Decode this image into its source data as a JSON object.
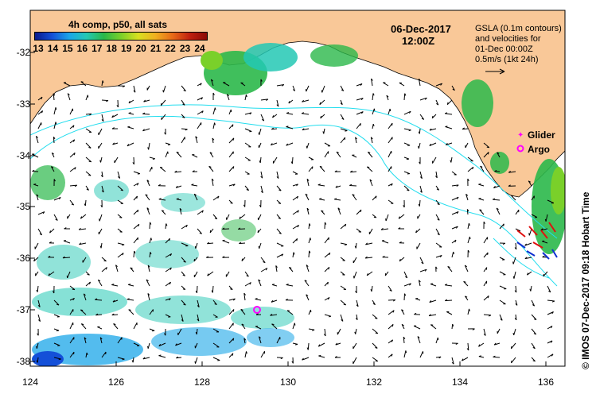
{
  "colorbar": {
    "title": "4h comp, p50, all sats",
    "ticks": [
      "13",
      "14",
      "15",
      "16",
      "17",
      "18",
      "19",
      "20",
      "21",
      "22",
      "23",
      "24"
    ],
    "colors": [
      "#0a1a8c",
      "#1450d8",
      "#1aa6e8",
      "#23c8b4",
      "#2bb84a",
      "#7ad02a",
      "#d8e020",
      "#f0b020",
      "#e86a18",
      "#c02010",
      "#8a0a06"
    ]
  },
  "datetime": {
    "date": "06-Dec-2017",
    "time": "12:00Z"
  },
  "gsla_legend": {
    "line1": "GSLA (0.1m contours)",
    "line2": "and velocities for",
    "line3": "01-Dec 00:00Z",
    "line4": "0.5m/s (1kt 24h)"
  },
  "markers": {
    "glider_label": "Glider",
    "argo_label": "Argo"
  },
  "axes": {
    "x_ticks": [
      "124",
      "126",
      "128",
      "130",
      "132",
      "134",
      "136"
    ],
    "y_ticks": [
      "-32",
      "-33",
      "-34",
      "-35",
      "-36",
      "-37",
      "-38"
    ]
  },
  "credit": "© IMOS 07-Dec-2017 09:18 Hobart Time",
  "colors": {
    "land": "#f9c898",
    "ocean": "#ffffff",
    "contour": "#22ddee",
    "marker": "#ff00ff"
  }
}
